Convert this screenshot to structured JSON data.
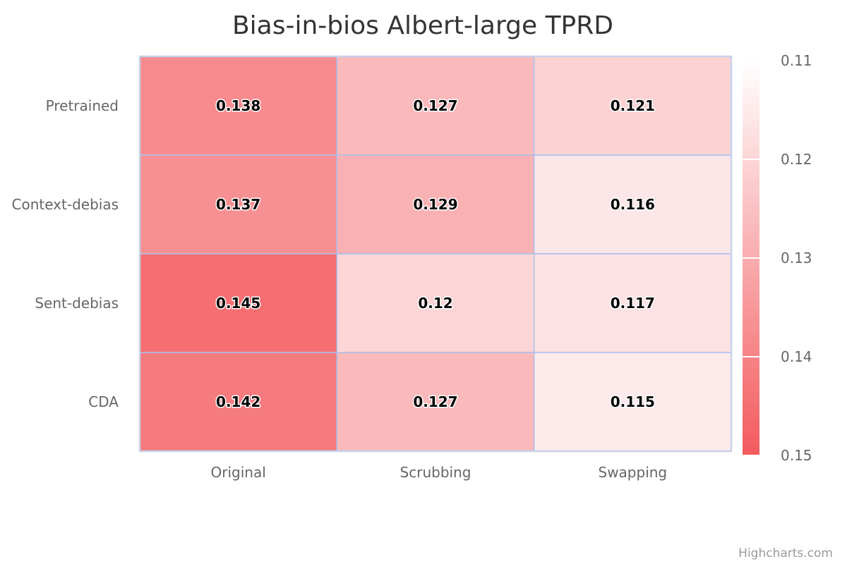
{
  "chart_data": {
    "type": "heatmap",
    "title": "Bias-in-bios Albert-large TPRD",
    "x_categories": [
      "Original",
      "Scrubbing",
      "Swapping"
    ],
    "y_categories": [
      "Pretrained",
      "Context-debias",
      "Sent-debias",
      "CDA"
    ],
    "values": [
      [
        0.138,
        0.127,
        0.121
      ],
      [
        0.137,
        0.129,
        0.116
      ],
      [
        0.145,
        0.12,
        0.117
      ],
      [
        0.142,
        0.127,
        0.115
      ]
    ],
    "color_axis": {
      "min": 0.11,
      "max": 0.15,
      "min_color": "#ffffff",
      "max_color": "#f35a5e",
      "ticks": [
        "0.11",
        "0.12",
        "0.13",
        "0.14",
        "0.15"
      ]
    },
    "grid_color": "#a8c0ec",
    "legend": "right"
  },
  "credit": "Highcharts.com"
}
